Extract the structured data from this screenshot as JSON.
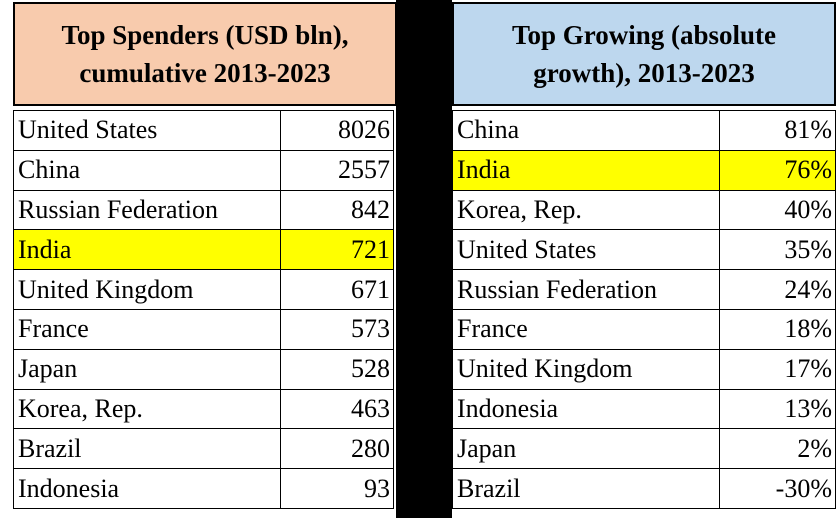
{
  "left_table": {
    "title_line1": "Top Spenders (USD bln),",
    "title_line2": "cumulative 2013-2023",
    "rows": [
      {
        "name": "United States",
        "value": "8026"
      },
      {
        "name": "China",
        "value": "2557"
      },
      {
        "name": "Russian Federation",
        "value": "842"
      },
      {
        "name": "India",
        "value": "721"
      },
      {
        "name": "United Kingdom",
        "value": "671"
      },
      {
        "name": "France",
        "value": "573"
      },
      {
        "name": "Japan",
        "value": "528"
      },
      {
        "name": "Korea, Rep.",
        "value": "463"
      },
      {
        "name": "Brazil",
        "value": "280"
      },
      {
        "name": "Indonesia",
        "value": "93"
      }
    ]
  },
  "right_table": {
    "title_line1": "Top Growing (absolute",
    "title_line2": "growth), 2013-2023",
    "rows": [
      {
        "name": "China",
        "value": "81%"
      },
      {
        "name": "India",
        "value": "76%"
      },
      {
        "name": "Korea, Rep.",
        "value": "40%"
      },
      {
        "name": "United States",
        "value": "35%"
      },
      {
        "name": "Russian Federation",
        "value": "24%"
      },
      {
        "name": "France",
        "value": "18%"
      },
      {
        "name": "United Kingdom",
        "value": "17%"
      },
      {
        "name": "Indonesia",
        "value": "13%"
      },
      {
        "name": "Japan",
        "value": "2%"
      },
      {
        "name": "Brazil",
        "value": "-30%"
      }
    ]
  },
  "colors": {
    "left_header_bg": "#f8cbad",
    "right_header_bg": "#bdd7ee",
    "highlight": "#ffff00",
    "divider": "#000000"
  }
}
